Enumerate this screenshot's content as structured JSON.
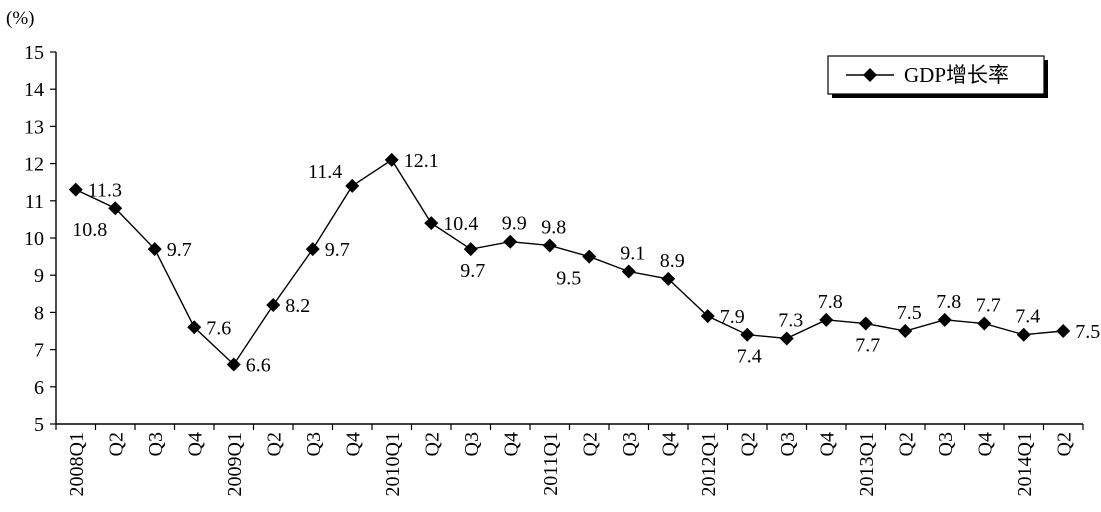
{
  "chart_data": {
    "type": "line",
    "ylabel_unit": "(%)",
    "ylim": [
      5,
      15
    ],
    "yticks": [
      5,
      6,
      7,
      8,
      9,
      10,
      11,
      12,
      13,
      14,
      15
    ],
    "grid": false,
    "legend_position": "top-right",
    "categories": [
      "2008Q1",
      "Q2",
      "Q3",
      "Q4",
      "2009Q1",
      "Q2",
      "Q3",
      "Q4",
      "2010Q1",
      "Q2",
      "Q3",
      "Q4",
      "2011Q1",
      "Q2",
      "Q3",
      "Q4",
      "2012Q1",
      "Q2",
      "Q3",
      "Q4",
      "2013Q1",
      "Q2",
      "Q3",
      "Q4",
      "2014Q1",
      "Q2"
    ],
    "series": [
      {
        "name": "GDP增长率",
        "color": "#000000",
        "marker": "diamond",
        "values": [
          11.3,
          10.8,
          9.7,
          7.6,
          6.6,
          8.2,
          9.7,
          11.4,
          12.1,
          10.4,
          9.7,
          9.9,
          9.8,
          9.5,
          9.1,
          8.9,
          7.9,
          7.4,
          7.3,
          7.8,
          7.7,
          7.5,
          7.8,
          7.7,
          7.4,
          7.5
        ],
        "data_labels": [
          "11.3",
          "10.8",
          "9.7",
          "7.6",
          "6.6",
          "8.2",
          "9.7",
          "11.4",
          "12.1",
          "10.4",
          "9.7",
          "9.9",
          "9.8",
          "9.5",
          "9.1",
          "8.9",
          "7.9",
          "7.4",
          "7.3",
          "7.8",
          "7.7",
          "7.5",
          "7.8",
          "7.7",
          "7.4",
          "7.5"
        ]
      }
    ]
  }
}
